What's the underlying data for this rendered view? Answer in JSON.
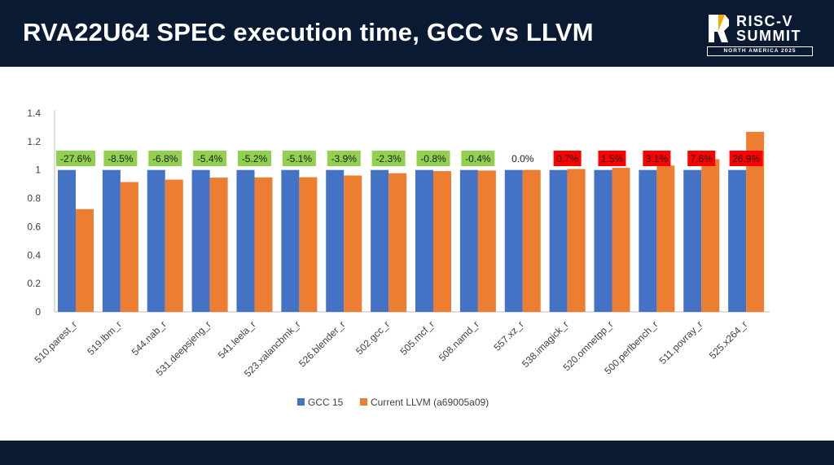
{
  "header": {
    "title": "RVA22U64 SPEC execution time, GCC vs LLVM",
    "logo": {
      "line1": "RISC-V",
      "line2": "SUMMIT",
      "line3": "NORTH AMERICA 2025"
    }
  },
  "colors": {
    "header_bg": "#0b1a33",
    "gcc": "#4472c4",
    "llvm": "#ed7d31",
    "label_good": "#92d050",
    "label_bad": "#ff0000",
    "label_neutral": "#ffffff"
  },
  "chart_data": {
    "type": "bar",
    "title": "",
    "xlabel": "",
    "ylabel": "",
    "ylim": [
      0,
      1.4
    ],
    "yticks": [
      "0",
      "0.2",
      "0.4",
      "0.6",
      "0.8",
      "1",
      "1.2",
      "1.4"
    ],
    "grid": false,
    "legend_position": "bottom",
    "categories": [
      "510.parest_r",
      "519.lbm_r",
      "544.nab_r",
      "531.deepsjeng_r",
      "541.leela_r",
      "523.xalancbmk_r",
      "526.blender_r",
      "502.gcc_r",
      "505.mcf_r",
      "508.namd_r",
      "557.xz_r",
      "538.imagick_r",
      "520.omnetpp_r",
      "500.perlbench_r",
      "511.povray_r",
      "525.x264_r"
    ],
    "series": [
      {
        "name": "GCC 15",
        "values": [
          1,
          1,
          1,
          1,
          1,
          1,
          1,
          1,
          1,
          1,
          1,
          1,
          1,
          1,
          1,
          1
        ]
      },
      {
        "name": "Current LLVM (a69005a09)",
        "values": [
          0.724,
          0.915,
          0.932,
          0.946,
          0.948,
          0.949,
          0.961,
          0.977,
          0.992,
          0.996,
          1.0,
          1.007,
          1.015,
          1.031,
          1.076,
          1.269
        ]
      }
    ],
    "annotations": [
      "-27.6%",
      "-8.5%",
      "-6.8%",
      "-5.4%",
      "-5.2%",
      "-5.1%",
      "-3.9%",
      "-2.3%",
      "-0.8%",
      "-0.4%",
      "0.0%",
      "0.7%",
      "1.5%",
      "3.1%",
      "7.6%",
      "26.9%"
    ]
  }
}
